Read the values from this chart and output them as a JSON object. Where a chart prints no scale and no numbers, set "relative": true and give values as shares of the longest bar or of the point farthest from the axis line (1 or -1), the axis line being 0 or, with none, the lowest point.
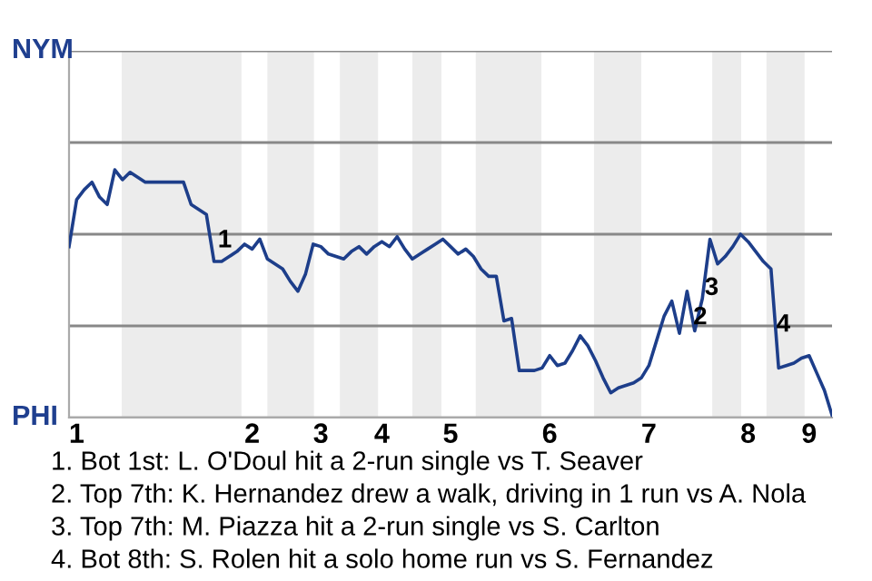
{
  "chart_data": {
    "type": "line",
    "categories": [
      null,
      "1",
      null,
      null,
      null,
      null,
      null,
      null,
      null,
      null,
      null,
      null,
      null,
      null,
      null,
      null,
      null,
      null,
      null,
      null,
      null,
      null,
      null,
      null,
      "2",
      null,
      null,
      null,
      null,
      null,
      null,
      null,
      null,
      "3",
      null,
      null,
      null,
      null,
      null,
      null,
      null,
      "4",
      null,
      null,
      null,
      null,
      null,
      null,
      null,
      null,
      "5",
      null,
      null,
      null,
      null,
      null,
      null,
      null,
      null,
      null,
      null,
      null,
      null,
      "6",
      null,
      null,
      null,
      null,
      null,
      null,
      null,
      null,
      null,
      null,
      null,
      null,
      "7",
      null,
      null,
      null,
      null,
      null,
      null,
      null,
      null,
      null,
      null,
      null,
      null,
      "8",
      null,
      null,
      null,
      null,
      null,
      null,
      null,
      "9",
      null,
      null,
      null
    ],
    "relative": true,
    "series": [
      {
        "color": "#1d3e8a",
        "values": [
          0.69,
          0.88,
          0.92,
          0.95,
          0.89,
          0.86,
          1,
          0.96,
          0.99,
          0.97,
          0.95,
          0.95,
          0.95,
          0.95,
          0.95,
          0.95,
          0.86,
          0.84,
          0.82,
          0.63,
          0.63,
          0.65,
          0.67,
          0.7,
          0.68,
          0.72,
          0.64,
          0.62,
          0.6,
          0.55,
          0.51,
          0.58,
          0.7,
          0.69,
          0.66,
          0.65,
          0.64,
          0.67,
          0.69,
          0.66,
          0.69,
          0.71,
          0.69,
          0.73,
          0.68,
          0.64,
          0.66,
          0.68,
          0.7,
          0.72,
          0.69,
          0.66,
          0.68,
          0.65,
          0.6,
          0.57,
          0.57,
          0.39,
          0.4,
          0.19,
          0.19,
          0.19,
          0.2,
          0.25,
          0.21,
          0.22,
          0.27,
          0.33,
          0.29,
          0.23,
          0.16,
          0.1,
          0.12,
          0.13,
          0.14,
          0.16,
          0.21,
          0.31,
          0.41,
          0.47,
          0.34,
          0.51,
          0.35,
          0.48,
          0.72,
          0.62,
          0.65,
          0.69,
          0.74,
          0.71,
          0.67,
          0.63,
          0.6,
          0.2,
          0.21,
          0.22,
          0.24,
          0.25,
          0.18,
          0.11,
          0.01
        ]
      }
    ],
    "ref_lines": [
      {
        "axis": "y",
        "value": 0,
        "label": "PHI",
        "color": "#aaaaaa"
      },
      {
        "axis": "y",
        "value": 0.37,
        "label": null,
        "color": "#888888"
      },
      {
        "axis": "y",
        "value": 0.74,
        "label": null,
        "color": "#888888"
      },
      {
        "axis": "y",
        "value": 1.11,
        "label": null,
        "color": "#888888"
      },
      {
        "axis": "y",
        "value": 1.48,
        "label": "NYM",
        "color": "#888888"
      }
    ],
    "annotations": [
      "1",
      "2",
      "3",
      "4",
      "1. Bot 1st: L. O'Doul hit a 2-run single vs T. Seaver",
      "2. Top 7th: K. Hernandez drew a walk, driving in 1 run vs A. Nola",
      "3. Top 7th: M. Piazza hit a 2-run single vs S. Carlton",
      "4. Bot 8th: S. Rolen hit a solo home run vs S. Fernandez"
    ]
  }
}
